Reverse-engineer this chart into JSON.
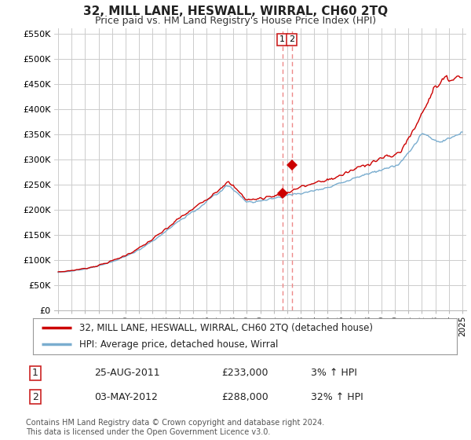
{
  "title": "32, MILL LANE, HESWALL, WIRRAL, CH60 2TQ",
  "subtitle": "Price paid vs. HM Land Registry's House Price Index (HPI)",
  "ylim": [
    0,
    560000
  ],
  "yticks": [
    0,
    50000,
    100000,
    150000,
    200000,
    250000,
    300000,
    350000,
    400000,
    450000,
    500000,
    550000
  ],
  "ytick_labels": [
    "£0",
    "£50K",
    "£100K",
    "£150K",
    "£200K",
    "£250K",
    "£300K",
    "£350K",
    "£400K",
    "£450K",
    "£500K",
    "£550K"
  ],
  "background_color": "#ffffff",
  "grid_color": "#cccccc",
  "line1_color": "#cc0000",
  "line2_color": "#7aadcf",
  "annotation_line_color": "#ee8888",
  "sale1_date": "25-AUG-2011",
  "sale1_price": 233000,
  "sale1_hpi": "3% ↑ HPI",
  "sale2_date": "03-MAY-2012",
  "sale2_price": 288000,
  "sale2_hpi": "32% ↑ HPI",
  "legend1_label": "32, MILL LANE, HESWALL, WIRRAL, CH60 2TQ (detached house)",
  "legend2_label": "HPI: Average price, detached house, Wirral",
  "footnote": "Contains HM Land Registry data © Crown copyright and database right 2024.\nThis data is licensed under the Open Government Licence v3.0.",
  "sale1_x": 2011.646,
  "sale2_x": 2012.336,
  "xlim_left": 1994.7,
  "xlim_right": 2025.3
}
